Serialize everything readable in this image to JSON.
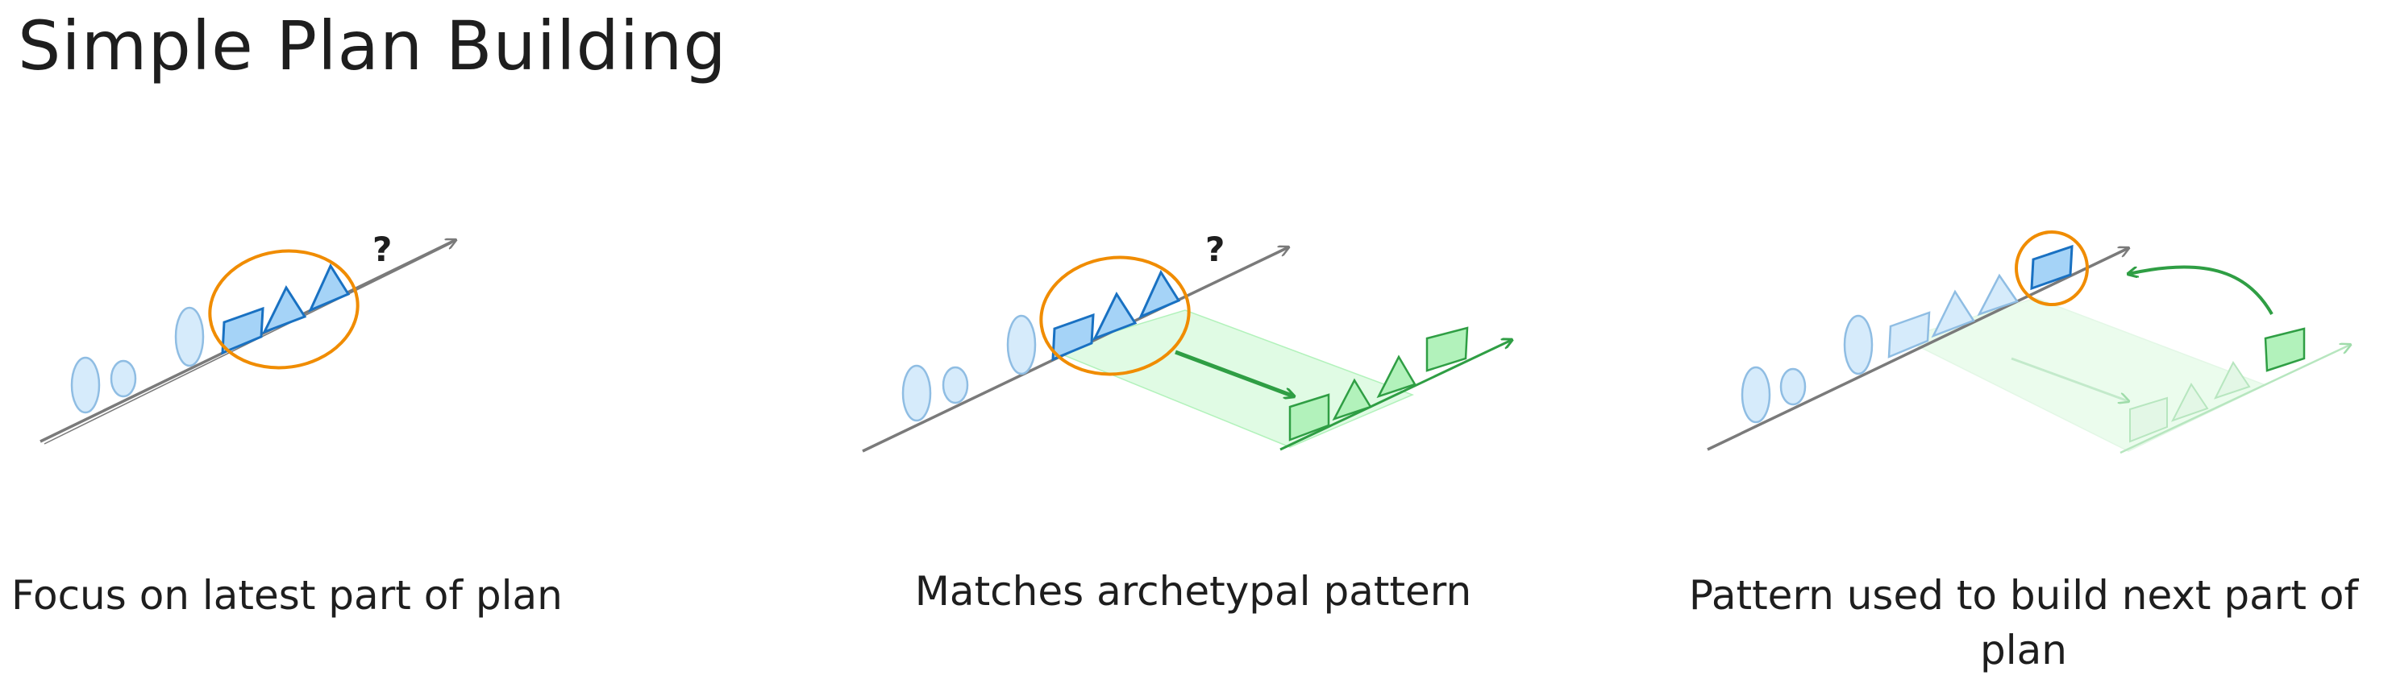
{
  "title": "Simple Plan Building",
  "panels": [
    {
      "caption": "Focus on latest part of plan",
      "question_mark": "?"
    },
    {
      "caption": "Matches archetypal pattern",
      "question_mark": "?"
    },
    {
      "caption": "Pattern used to build next part of plan"
    }
  ],
  "colors": {
    "line": "#7a7a7a",
    "blue_fill": "#a5d3f7",
    "blue_stroke": "#1971c2",
    "faded_blue_fill": "#d6ebfb",
    "faded_blue_stroke": "#8fbde3",
    "orange": "#f08c00",
    "green_fill": "#b2f2bb",
    "green_stroke": "#2f9e44",
    "green_band": "#d3f9d8"
  }
}
